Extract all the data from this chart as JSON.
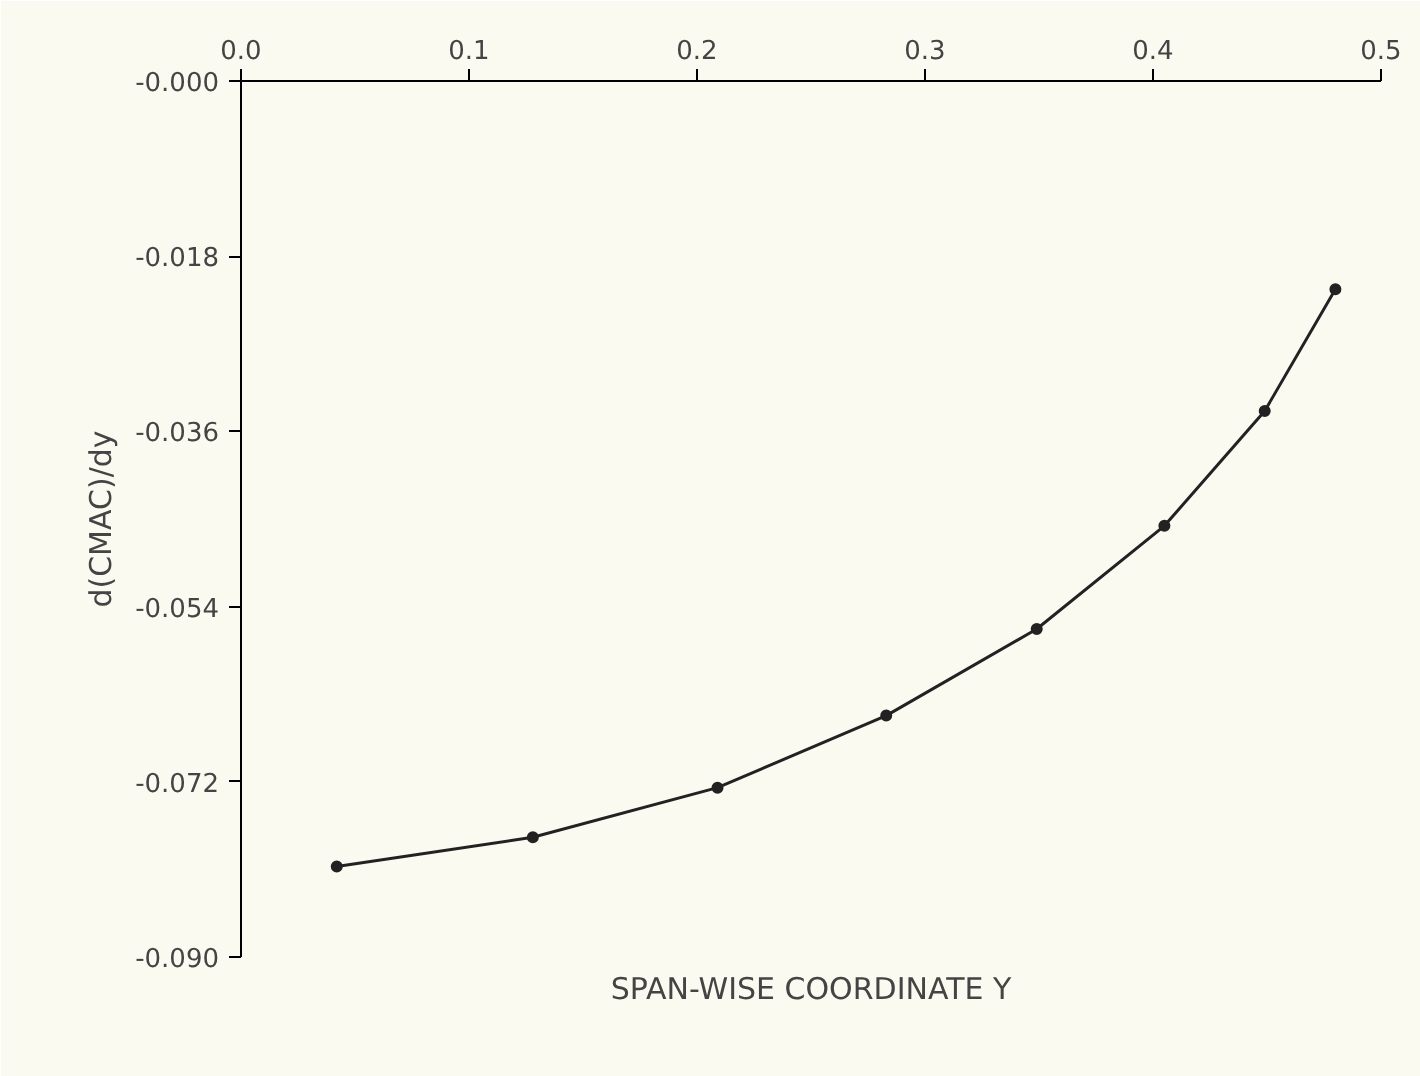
{
  "chart_data": {
    "type": "line",
    "xlabel": "SPAN-WISE COORDINATE Y",
    "ylabel": "d(CMAC)/dy",
    "x": [
      0.042,
      0.128,
      0.209,
      0.283,
      0.349,
      0.405,
      0.449,
      0.48
    ],
    "series": [
      {
        "color": "#222222",
        "values": [
          -0.0807,
          -0.0777,
          -0.0726,
          -0.0652,
          -0.0563,
          -0.0457,
          -0.0339,
          -0.0214
        ]
      }
    ],
    "xlim": [
      0,
      0.5
    ],
    "ylim": [
      -0.09,
      0
    ],
    "xticks": [
      {
        "value": 0,
        "label": "0.0"
      },
      0.1,
      0.2,
      0.3,
      0.4,
      0.5
    ],
    "yticks": [
      {
        "value": -0.09,
        "label": "-0.090"
      },
      {
        "value": -0.072,
        "label": "-0.072"
      },
      {
        "value": -0.054,
        "label": "-0.054"
      },
      {
        "value": -0.036,
        "label": "-0.036"
      },
      {
        "value": -0.018,
        "label": "-0.018"
      },
      {
        "value": 0,
        "label": "-0.000"
      }
    ],
    "marker": "circle",
    "line_style": "solid",
    "grid": false
  }
}
